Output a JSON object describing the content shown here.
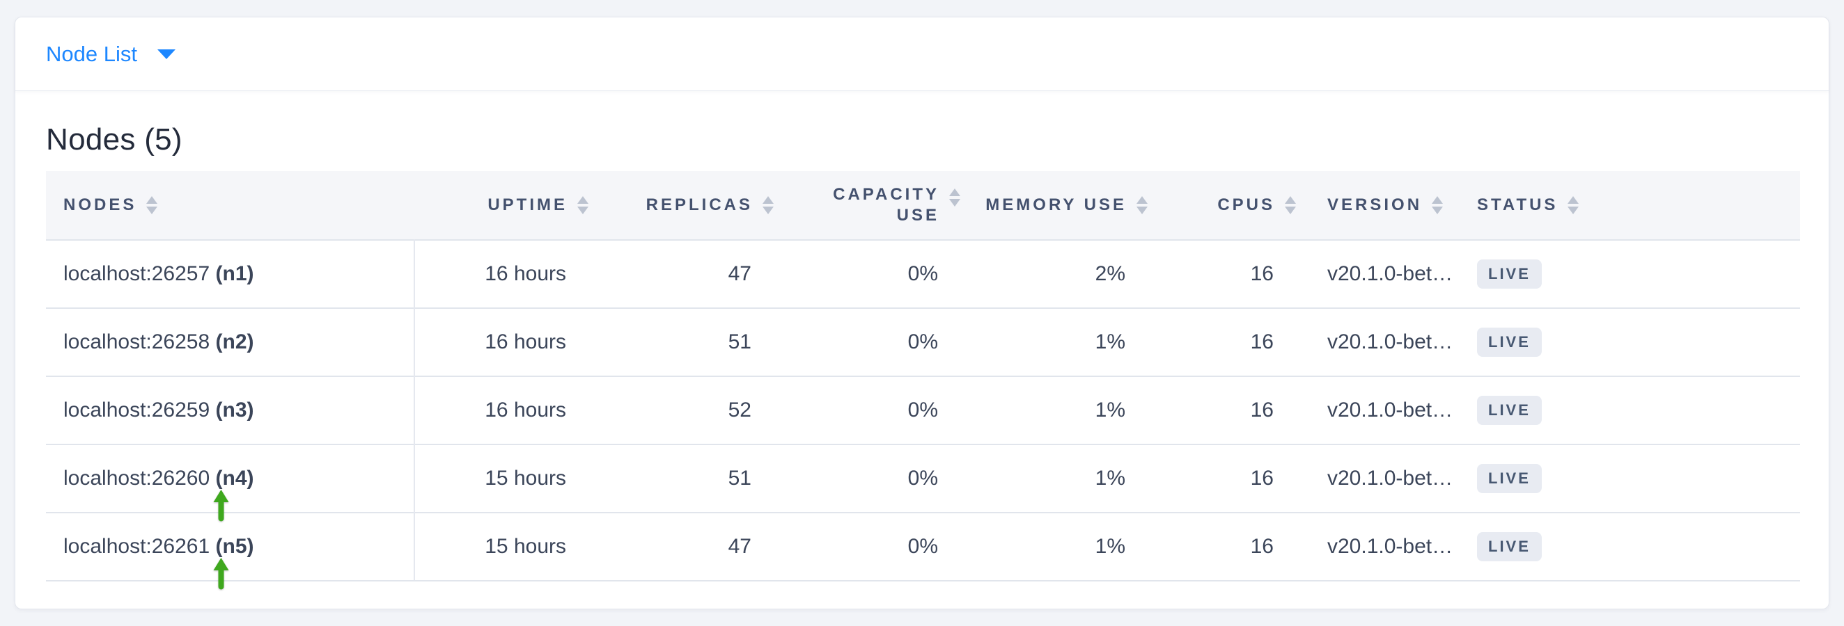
{
  "view_selector": {
    "label": "Node List"
  },
  "page": {
    "title": "Nodes (5)"
  },
  "table": {
    "columns": [
      {
        "id": "nodes",
        "label": "NODES",
        "align": "left",
        "sortable": true
      },
      {
        "id": "uptime",
        "label": "UPTIME",
        "align": "right",
        "sortable": true
      },
      {
        "id": "replicas",
        "label": "REPLICAS",
        "align": "right",
        "sortable": true
      },
      {
        "id": "capacity_use",
        "label": "CAPACITY USE",
        "align": "right",
        "sortable": true,
        "wrap": true
      },
      {
        "id": "memory_use",
        "label": "MEMORY USE",
        "align": "right",
        "sortable": true
      },
      {
        "id": "cpus",
        "label": "CPUS",
        "align": "right",
        "sortable": true
      },
      {
        "id": "version",
        "label": "VERSION",
        "align": "left",
        "sortable": true
      },
      {
        "id": "status",
        "label": "STATUS",
        "align": "left",
        "sortable": true
      }
    ],
    "rows": [
      {
        "address": "localhost:26257",
        "node_id": "(n1)",
        "uptime": "16 hours",
        "replicas": "47",
        "capacity_use": "0%",
        "memory_use": "2%",
        "cpus": "16",
        "version": "v20.1.0-bet…",
        "status": "LIVE",
        "annotation_arrow": false
      },
      {
        "address": "localhost:26258",
        "node_id": "(n2)",
        "uptime": "16 hours",
        "replicas": "51",
        "capacity_use": "0%",
        "memory_use": "1%",
        "cpus": "16",
        "version": "v20.1.0-bet…",
        "status": "LIVE",
        "annotation_arrow": false
      },
      {
        "address": "localhost:26259",
        "node_id": "(n3)",
        "uptime": "16 hours",
        "replicas": "52",
        "capacity_use": "0%",
        "memory_use": "1%",
        "cpus": "16",
        "version": "v20.1.0-bet…",
        "status": "LIVE",
        "annotation_arrow": false
      },
      {
        "address": "localhost:26260",
        "node_id": "(n4)",
        "uptime": "15 hours",
        "replicas": "51",
        "capacity_use": "0%",
        "memory_use": "1%",
        "cpus": "16",
        "version": "v20.1.0-bet…",
        "status": "LIVE",
        "annotation_arrow": true
      },
      {
        "address": "localhost:26261",
        "node_id": "(n5)",
        "uptime": "15 hours",
        "replicas": "47",
        "capacity_use": "0%",
        "memory_use": "1%",
        "cpus": "16",
        "version": "v20.1.0-bet…",
        "status": "LIVE",
        "annotation_arrow": true
      }
    ]
  },
  "colors": {
    "accent_blue": "#1d87ff",
    "arrow_green": "#3fa81e",
    "badge_bg": "#e8ebf2",
    "badge_text": "#475872",
    "header_text": "#44516e",
    "body_text": "#3b4559",
    "sort_icon": "#bcc3d0"
  }
}
